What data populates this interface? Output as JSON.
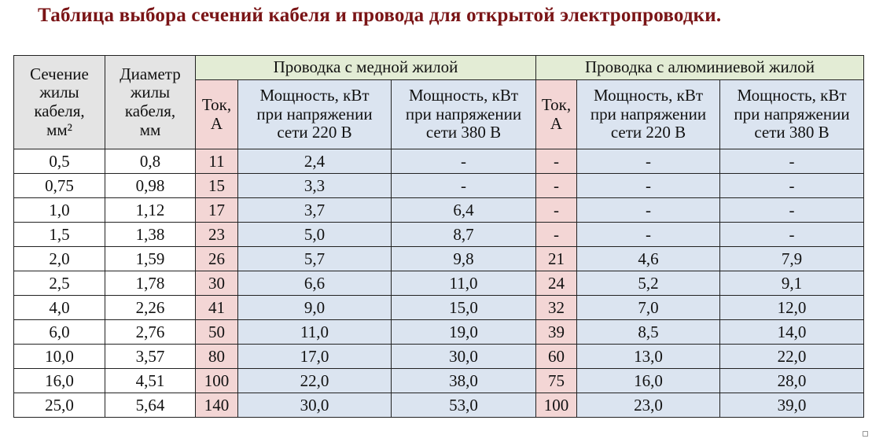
{
  "title": "Таблица выбора сечений кабеля и провода для открытой электропроводки.",
  "headers": {
    "cross_section": [
      "Сечение",
      "жилы",
      "кабеля,",
      "мм²"
    ],
    "diameter": [
      "Диаметр",
      "жилы",
      "кабеля,",
      "мм"
    ],
    "copper_group": "Проводка с медной жилой",
    "aluminum_group": "Проводка с алюминиевой жилой",
    "current": [
      "Ток,",
      "А"
    ],
    "power_220": [
      "Мощность, кВт",
      "при напряжении",
      "сети 220 В"
    ],
    "power_380": [
      "Мощность, кВт",
      "при напряжении",
      "сети 380 В"
    ]
  },
  "rows": [
    [
      "0,5",
      "0,8",
      "11",
      "2,4",
      "-",
      "-",
      "-",
      "-"
    ],
    [
      "0,75",
      "0,98",
      "15",
      "3,3",
      "-",
      "-",
      "-",
      "-"
    ],
    [
      "1,0",
      "1,12",
      "17",
      "3,7",
      "6,4",
      "-",
      "-",
      "-"
    ],
    [
      "1,5",
      "1,38",
      "23",
      "5,0",
      "8,7",
      "-",
      "-",
      "-"
    ],
    [
      "2,0",
      "1,59",
      "26",
      "5,7",
      "9,8",
      "21",
      "4,6",
      "7,9"
    ],
    [
      "2,5",
      "1,78",
      "30",
      "6,6",
      "11,0",
      "24",
      "5,2",
      "9,1"
    ],
    [
      "4,0",
      "2,26",
      "41",
      "9,0",
      "15,0",
      "32",
      "7,0",
      "12,0"
    ],
    [
      "6,0",
      "2,76",
      "50",
      "11,0",
      "19,0",
      "39",
      "8,5",
      "14,0"
    ],
    [
      "10,0",
      "3,57",
      "80",
      "17,0",
      "30,0",
      "60",
      "13,0",
      "22,0"
    ],
    [
      "16,0",
      "4,51",
      "100",
      "22,0",
      "38,0",
      "75",
      "16,0",
      "28,0"
    ],
    [
      "25,0",
      "5,64",
      "140",
      "30,0",
      "53,0",
      "100",
      "23,0",
      "39,0"
    ]
  ]
}
